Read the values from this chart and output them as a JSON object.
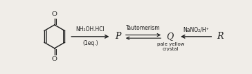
{
  "bg_color": "#f0ede8",
  "fig_width": 3.64,
  "fig_height": 1.07,
  "dpi": 100,
  "text_color": "#1a1a1a",
  "arrow_color": "#1a1a1a",
  "ring_color": "#1a1a1a",
  "arrow1_label_top": "NH₂OH.HCl",
  "arrow1_label_bottom": "(1eq.)",
  "arrow2_label_top": "Tautomerism",
  "arrow3_label_top": "NaNO₂/H⁺",
  "label_Q_sub": "pale yellow\ncrystal"
}
